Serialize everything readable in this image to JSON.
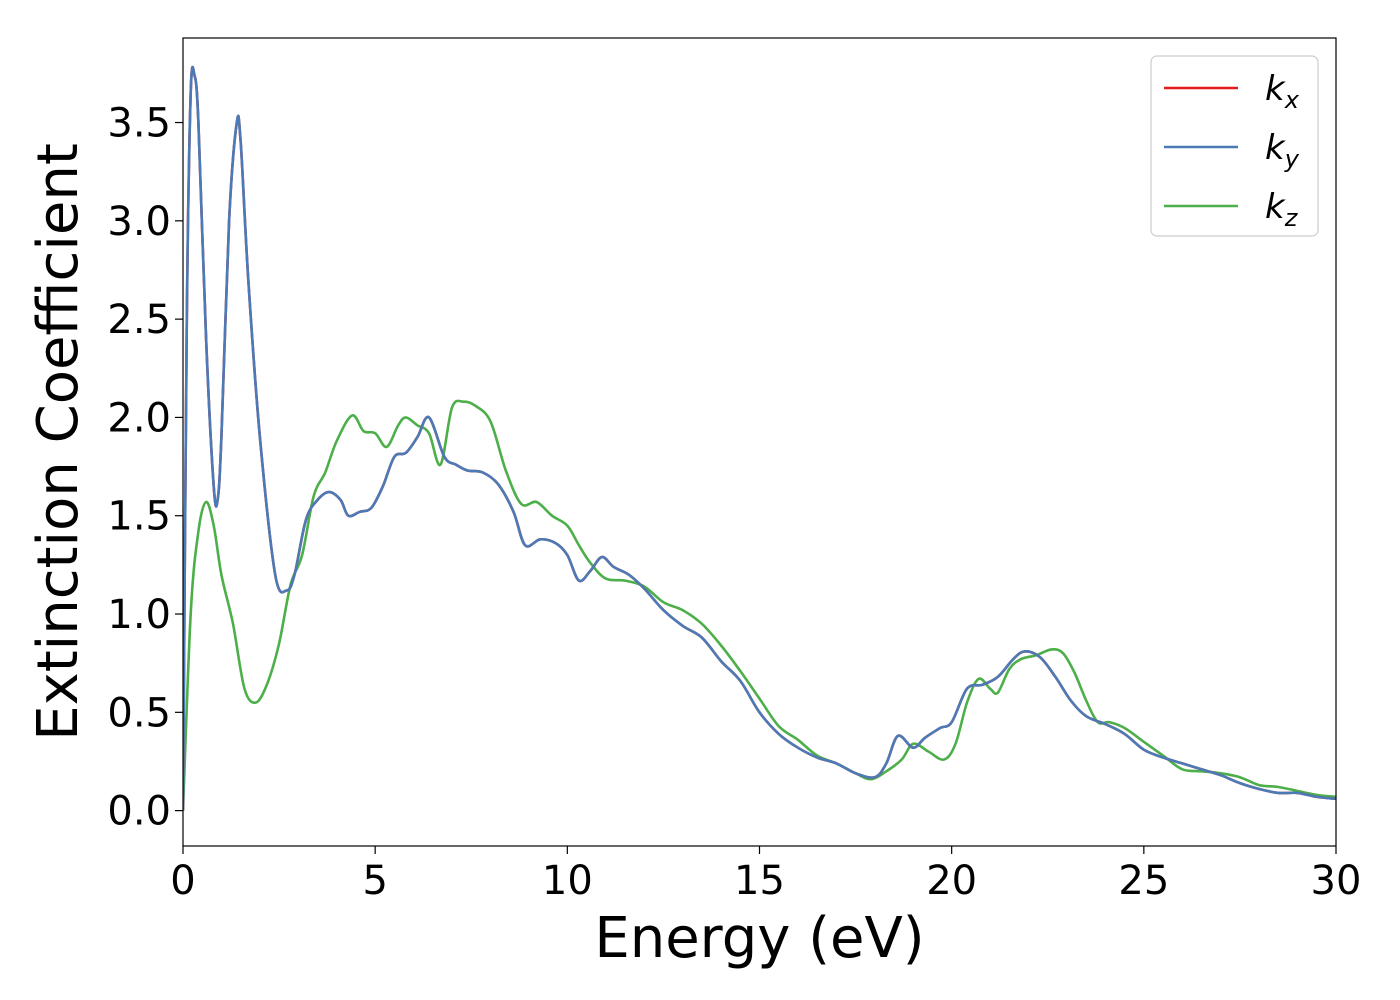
{
  "chart_data": {
    "type": "line",
    "xlabel": "Energy (eV)",
    "ylabel": "Extinction Coefficient",
    "xlim": [
      0,
      30
    ],
    "ylim": [
      -0.18,
      3.93
    ],
    "xticks": [
      0,
      5,
      10,
      15,
      20,
      25,
      30
    ],
    "xtick_labels": [
      "0",
      "5",
      "10",
      "15",
      "20",
      "25",
      "30"
    ],
    "yticks": [
      0.0,
      0.5,
      1.0,
      1.5,
      2.0,
      2.5,
      3.0,
      3.5
    ],
    "ytick_labels": [
      "0.0",
      "0.5",
      "1.0",
      "1.5",
      "2.0",
      "2.5",
      "3.0",
      "3.5"
    ],
    "grid": false,
    "legend_position": "top-right",
    "series": [
      {
        "name": "k",
        "name_sub": "x",
        "color": "#e41a1c",
        "x": [
          0,
          0.1,
          0.2,
          0.3,
          0.4,
          0.6,
          0.8,
          0.9,
          1.0,
          1.2,
          1.4,
          1.5,
          1.7,
          2.0,
          2.4,
          2.7,
          2.9,
          3.2,
          3.5,
          3.8,
          4.1,
          4.3,
          4.6,
          4.9,
          5.2,
          5.5,
          5.8,
          6.1,
          6.4,
          6.8,
          7.1,
          7.4,
          7.8,
          8.2,
          8.6,
          8.9,
          9.3,
          9.7,
          10.0,
          10.3,
          10.6,
          10.9,
          11.2,
          11.6,
          12.0,
          12.5,
          13.0,
          13.5,
          14.0,
          14.5,
          15.0,
          15.5,
          16.0,
          16.5,
          17.0,
          17.5,
          18.0,
          18.3,
          18.6,
          19.0,
          19.3,
          19.7,
          20.0,
          20.4,
          20.8,
          21.2,
          21.6,
          21.9,
          22.3,
          22.7,
          23.1,
          23.5,
          24.0,
          24.5,
          25.0,
          25.5,
          26.0,
          26.5,
          27.0,
          27.5,
          28.0,
          28.5,
          29.0,
          29.5,
          30.0
        ],
        "values": [
          0.0,
          2.5,
          3.65,
          3.74,
          3.5,
          2.4,
          1.65,
          1.58,
          1.9,
          3.0,
          3.5,
          3.4,
          2.7,
          1.9,
          1.2,
          1.12,
          1.2,
          1.48,
          1.58,
          1.62,
          1.58,
          1.5,
          1.52,
          1.54,
          1.65,
          1.8,
          1.82,
          1.9,
          2.0,
          1.8,
          1.76,
          1.73,
          1.72,
          1.66,
          1.52,
          1.35,
          1.38,
          1.36,
          1.3,
          1.17,
          1.22,
          1.29,
          1.24,
          1.2,
          1.13,
          1.02,
          0.94,
          0.88,
          0.76,
          0.66,
          0.5,
          0.39,
          0.32,
          0.27,
          0.24,
          0.19,
          0.17,
          0.24,
          0.38,
          0.32,
          0.37,
          0.42,
          0.45,
          0.62,
          0.64,
          0.68,
          0.77,
          0.81,
          0.78,
          0.68,
          0.56,
          0.48,
          0.44,
          0.39,
          0.31,
          0.27,
          0.24,
          0.21,
          0.18,
          0.14,
          0.11,
          0.09,
          0.09,
          0.07,
          0.06
        ]
      },
      {
        "name": "k",
        "name_sub": "y",
        "color": "#4a7bb7",
        "x": [
          0,
          0.1,
          0.2,
          0.3,
          0.4,
          0.6,
          0.8,
          0.9,
          1.0,
          1.2,
          1.4,
          1.5,
          1.7,
          2.0,
          2.4,
          2.7,
          2.9,
          3.2,
          3.5,
          3.8,
          4.1,
          4.3,
          4.6,
          4.9,
          5.2,
          5.5,
          5.8,
          6.1,
          6.4,
          6.8,
          7.1,
          7.4,
          7.8,
          8.2,
          8.6,
          8.9,
          9.3,
          9.7,
          10.0,
          10.3,
          10.6,
          10.9,
          11.2,
          11.6,
          12.0,
          12.5,
          13.0,
          13.5,
          14.0,
          14.5,
          15.0,
          15.5,
          16.0,
          16.5,
          17.0,
          17.5,
          18.0,
          18.3,
          18.6,
          19.0,
          19.3,
          19.7,
          20.0,
          20.4,
          20.8,
          21.2,
          21.6,
          21.9,
          22.3,
          22.7,
          23.1,
          23.5,
          24.0,
          24.5,
          25.0,
          25.5,
          26.0,
          26.5,
          27.0,
          27.5,
          28.0,
          28.5,
          29.0,
          29.5,
          30.0
        ],
        "values": [
          0.0,
          2.5,
          3.65,
          3.74,
          3.5,
          2.4,
          1.65,
          1.58,
          1.9,
          3.0,
          3.5,
          3.4,
          2.7,
          1.9,
          1.2,
          1.12,
          1.2,
          1.48,
          1.58,
          1.62,
          1.58,
          1.5,
          1.52,
          1.54,
          1.65,
          1.8,
          1.82,
          1.9,
          2.0,
          1.8,
          1.76,
          1.73,
          1.72,
          1.66,
          1.52,
          1.35,
          1.38,
          1.36,
          1.3,
          1.17,
          1.22,
          1.29,
          1.24,
          1.2,
          1.13,
          1.02,
          0.94,
          0.88,
          0.76,
          0.66,
          0.5,
          0.39,
          0.32,
          0.27,
          0.24,
          0.19,
          0.17,
          0.24,
          0.38,
          0.32,
          0.37,
          0.42,
          0.45,
          0.62,
          0.64,
          0.68,
          0.77,
          0.81,
          0.78,
          0.68,
          0.56,
          0.48,
          0.44,
          0.39,
          0.31,
          0.27,
          0.24,
          0.21,
          0.18,
          0.14,
          0.11,
          0.09,
          0.09,
          0.07,
          0.06
        ]
      },
      {
        "name": "k",
        "name_sub": "z",
        "color": "#4daf4a",
        "x": [
          0,
          0.2,
          0.4,
          0.6,
          0.8,
          1.0,
          1.3,
          1.6,
          1.9,
          2.2,
          2.5,
          2.8,
          3.1,
          3.4,
          3.7,
          4.0,
          4.4,
          4.7,
          5.0,
          5.3,
          5.6,
          5.8,
          6.1,
          6.4,
          6.7,
          7.0,
          7.3,
          7.6,
          8.0,
          8.4,
          8.8,
          9.2,
          9.6,
          10.0,
          10.3,
          10.6,
          11.0,
          11.5,
          12.0,
          12.5,
          13.0,
          13.5,
          14.0,
          14.5,
          15.0,
          15.5,
          16.0,
          16.5,
          17.0,
          17.5,
          17.9,
          18.3,
          18.7,
          19.0,
          19.4,
          19.8,
          20.1,
          20.4,
          20.7,
          21.0,
          21.2,
          21.5,
          21.8,
          22.2,
          22.6,
          22.9,
          23.2,
          23.5,
          23.8,
          24.1,
          24.5,
          25.0,
          25.5,
          26.0,
          26.5,
          27.0,
          27.5,
          28.0,
          28.5,
          29.0,
          29.5,
          30.0
        ],
        "values": [
          0.0,
          1.0,
          1.42,
          1.57,
          1.45,
          1.2,
          0.95,
          0.62,
          0.55,
          0.65,
          0.85,
          1.15,
          1.3,
          1.6,
          1.72,
          1.88,
          2.01,
          1.93,
          1.92,
          1.85,
          1.96,
          2.0,
          1.96,
          1.92,
          1.76,
          2.05,
          2.08,
          2.06,
          1.98,
          1.73,
          1.56,
          1.57,
          1.5,
          1.45,
          1.35,
          1.26,
          1.18,
          1.17,
          1.14,
          1.06,
          1.02,
          0.95,
          0.84,
          0.71,
          0.57,
          0.43,
          0.36,
          0.28,
          0.24,
          0.19,
          0.16,
          0.2,
          0.26,
          0.34,
          0.3,
          0.26,
          0.34,
          0.55,
          0.67,
          0.62,
          0.6,
          0.72,
          0.77,
          0.79,
          0.82,
          0.8,
          0.7,
          0.56,
          0.45,
          0.45,
          0.42,
          0.35,
          0.28,
          0.21,
          0.2,
          0.19,
          0.17,
          0.13,
          0.12,
          0.1,
          0.08,
          0.07
        ]
      }
    ]
  }
}
